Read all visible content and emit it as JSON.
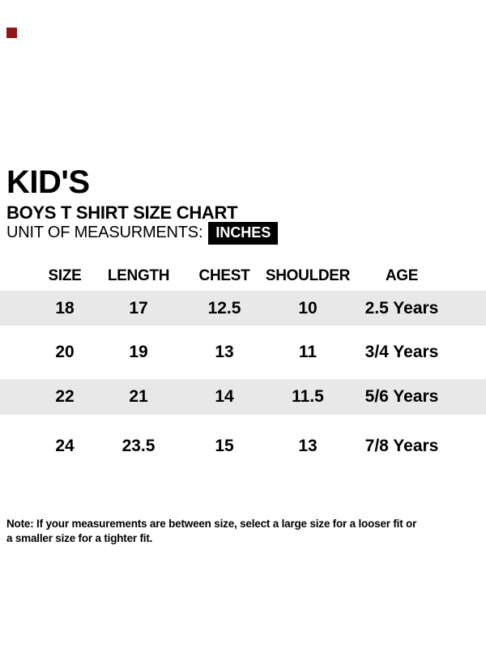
{
  "header": {
    "title": "KID'S",
    "subtitle": "BOYS T SHIRT SIZE CHART",
    "unit_label": "UNIT OF MEASURMENTS:",
    "unit_value": "INCHES"
  },
  "chart_data": {
    "type": "table",
    "title": "KID'S BOYS T SHIRT SIZE CHART",
    "unit": "INCHES",
    "columns": [
      "SIZE",
      "LENGTH",
      "CHEST",
      "SHOULDER",
      "AGE"
    ],
    "rows": [
      [
        "18",
        "17",
        "12.5",
        "10",
        "2.5 Years"
      ],
      [
        "20",
        "19",
        "13",
        "11",
        "3/4 Years"
      ],
      [
        "22",
        "21",
        "14",
        "11.5",
        "5/6 Years"
      ],
      [
        "24",
        "23.5",
        "15",
        "13",
        "7/8 Years"
      ]
    ],
    "note": "Note: If your measurements are between size, select a large size for a looser fit or a smaller size for a tighter fit."
  },
  "note": {
    "line1": "Note: If your measurements are between size, select a large size for a looser fit or",
    "line2": "a smaller size for a tighter fit."
  },
  "colors": {
    "stripe": "#e8e8e8",
    "badge_bg": "#000000",
    "badge_fg": "#ffffff",
    "text": "#000000",
    "marker": "#8f1717"
  }
}
